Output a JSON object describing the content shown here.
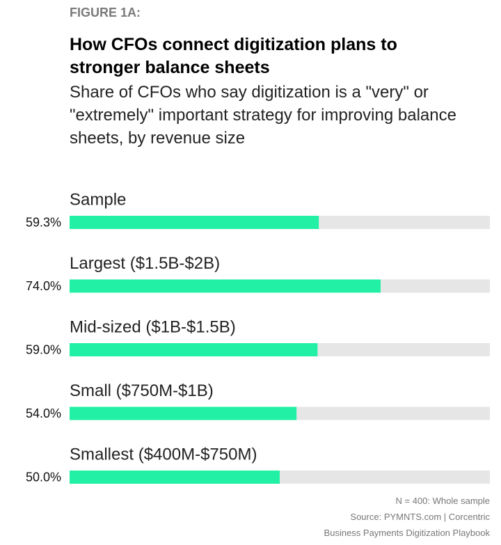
{
  "chart_data": {
    "type": "bar",
    "figure_label": "FIGURE 1A:",
    "title": "How CFOs connect digitization plans to stronger balance sheets",
    "subtitle": "Share of CFOs who say digitization is a \"very\" or \"extremely\" important strategy for improving balance sheets, by revenue size",
    "categories": [
      "Sample",
      "Largest ($1.5B-$2B)",
      "Mid-sized ($1B-$1.5B)",
      "Small ($750M-$1B)",
      "Smallest ($400M-$750M)"
    ],
    "values": [
      59.3,
      74.0,
      59.0,
      54.0,
      50.0
    ],
    "value_labels": [
      "59.3%",
      "74.0%",
      "59.0%",
      "54.0%",
      "50.0%"
    ],
    "color": "#22f0a4",
    "track_color": "#e6e6e6",
    "xlim": [
      0,
      100
    ],
    "notes": [
      "N = 400: Whole sample",
      "Source: PYMNTS.com | Corcentric",
      "Business Payments Digitization Playbook"
    ]
  }
}
